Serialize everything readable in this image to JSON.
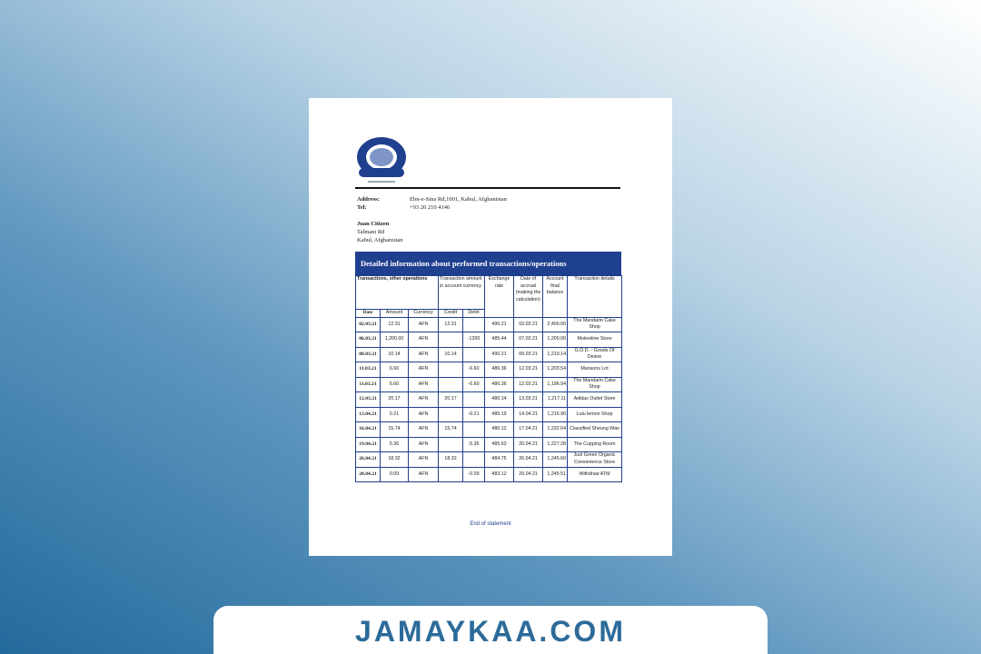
{
  "bank": {
    "logo": "bank-seal-logo",
    "address_label": "Address:",
    "address": "Ebn-e-Sina Rd,1001, Kabul, Afghanistan",
    "tel_label": "Tel:",
    "tel": "+93 20 210 4146"
  },
  "customer": {
    "name": "Juan Citizen",
    "street": "Talmani Rd",
    "city": "Kabul, Afghanistan"
  },
  "table": {
    "title": "Detailed information about performed transactions/operations",
    "headers": {
      "group": "Transactions, other operations",
      "amount_group": "Transaction amount in account currency",
      "exchange": "Exchange rate",
      "accrual": "Date of accrual (making the calculation)",
      "balance": "Account final balance",
      "details": "Transaction details",
      "date": "Date",
      "amount": "Amount",
      "currency": "Currency",
      "credit": "Credit",
      "debit": "Debit"
    },
    "rows": [
      [
        "02.03.21",
        "12.31",
        "AFN",
        "12.31",
        "",
        "490.21",
        "03.03.21",
        "2,400.00",
        "The Mandarin Cake Shop"
      ],
      [
        "06.03.21",
        "1,200.00",
        "AFN",
        "",
        "-1200",
        "485.44",
        "07.03.21",
        "1,200.00",
        "Moleskine Store"
      ],
      [
        "08.03.21",
        "10.14",
        "AFN",
        "10.14",
        "",
        "490.21",
        "09.03.21",
        "1,210.14",
        "G.O.D. - Goods Of Desire"
      ],
      [
        "11.03.21",
        "6.60",
        "AFN",
        "",
        "-6.60",
        "486.36",
        "12.03.21",
        "1,203.54",
        "Mansons Lot"
      ],
      [
        "11.03.21",
        "6.60",
        "AFN",
        "",
        "-6.60",
        "486.36",
        "12.03.21",
        "1,196.94",
        "The Mandarin Cake Shop"
      ],
      [
        "12.03.21",
        "20.17",
        "AFN",
        "20.17",
        "",
        "480.14",
        "13.03.21",
        "1,217.11",
        "Adidas Outlet Store"
      ],
      [
        "13.04.21",
        "0.21",
        "AFN",
        "",
        "-0.21",
        "485.19",
        "14.04.21",
        "1,216.90",
        "Lulu lemon Shop"
      ],
      [
        "16.04.21",
        "15.74",
        "AFN",
        "15.74",
        "",
        "480.12",
        "17.04.21",
        "1,232.64",
        "Classified Sheung Wan"
      ],
      [
        "19.04.21",
        "5.36",
        "AFN",
        "",
        "-5.36",
        "485.63",
        "20.04.21",
        "1,227.28",
        "The Cupping Room"
      ],
      [
        "26.04.21",
        "18.32",
        "AFN",
        "18.32",
        "",
        "484.75",
        "26.04.21",
        "1,245.60",
        "Just Green Organic Convenience Store"
      ],
      [
        "28.04.21",
        "0.09",
        "AFN",
        "",
        "-0.09",
        "483.12",
        "29.04.21",
        "1,245.51",
        "Withdraw ATM"
      ]
    ]
  },
  "footer_note": "End of statement",
  "watermark": "JAMAYKAA.COM",
  "colors": {
    "accent": "#1f3f8f",
    "brand": "#2c6b99"
  }
}
